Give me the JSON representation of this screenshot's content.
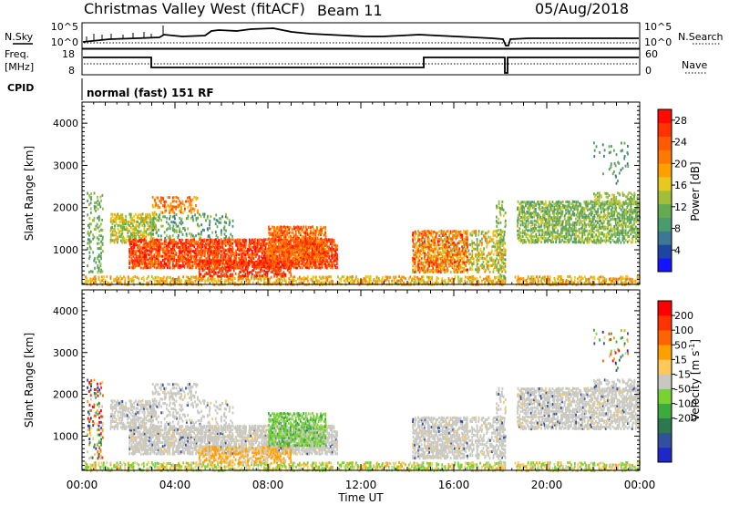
{
  "header": {
    "site": "Christmas Valley West (fitACF)",
    "beam": "Beam 11",
    "date": "05/Aug/2018"
  },
  "labels": {
    "nsky": "N.Sky",
    "nsearch": "N.Search",
    "freq_line1": "Freq.",
    "freq_line2": "[MHz]",
    "nave": "Nave",
    "cpid": "CPID",
    "cpid_value": "normal (fast) 151 RF"
  },
  "noise_axis": {
    "top": "10^5",
    "bottom": "10^0",
    "right_top": "10^5",
    "right_bottom": "10^0"
  },
  "freq_axis": {
    "top": "18",
    "bottom": "8",
    "right_top": "60",
    "right_bottom": "0"
  },
  "chart_data": [
    {
      "type": "heatmap",
      "name": "power",
      "ylabel": "Slant Range [km]",
      "xlabel": "Time UT",
      "x_ticks": [
        "00:00",
        "04:00",
        "08:00",
        "12:00",
        "16:00",
        "20:00",
        "00:00"
      ],
      "y_ticks": [
        "1000",
        "2000",
        "3000",
        "4000"
      ],
      "ylim": [
        180,
        4500
      ],
      "colorbar": {
        "label": "Power [dB]",
        "ticks": [
          "4",
          "8",
          "12",
          "16",
          "20",
          "24",
          "28"
        ],
        "colors": [
          "#1414ff",
          "#1e46a0",
          "#3c7896",
          "#4b9b6e",
          "#64aa50",
          "#a0be3c",
          "#e6c81e",
          "#ffa000",
          "#ff7800",
          "#ff5a00",
          "#ff3200",
          "#ff0a00"
        ]
      }
    },
    {
      "type": "heatmap",
      "name": "velocity",
      "ylabel": "Slant Range [km]",
      "xlabel": "Time UT",
      "x_ticks": [
        "00:00",
        "04:00",
        "08:00",
        "12:00",
        "16:00",
        "20:00",
        "00:00"
      ],
      "y_ticks": [
        "1000",
        "2000",
        "3000",
        "4000"
      ],
      "ylim": [
        180,
        4500
      ],
      "colorbar": {
        "label": "Velocity [m s",
        "label_sup": "-1",
        "label_end": "]",
        "ticks": [
          "200",
          "100",
          "50",
          "15",
          "-15",
          "-50",
          "-100",
          "-200"
        ],
        "colors": [
          "#1e28c8",
          "#3250a0",
          "#2d7850",
          "#3caa3c",
          "#78d232",
          "#c8c8c0",
          "#ffc85a",
          "#ffa000",
          "#ff6400",
          "#ff3200",
          "#ff0000"
        ]
      }
    }
  ],
  "xaxis_title": "Time UT"
}
